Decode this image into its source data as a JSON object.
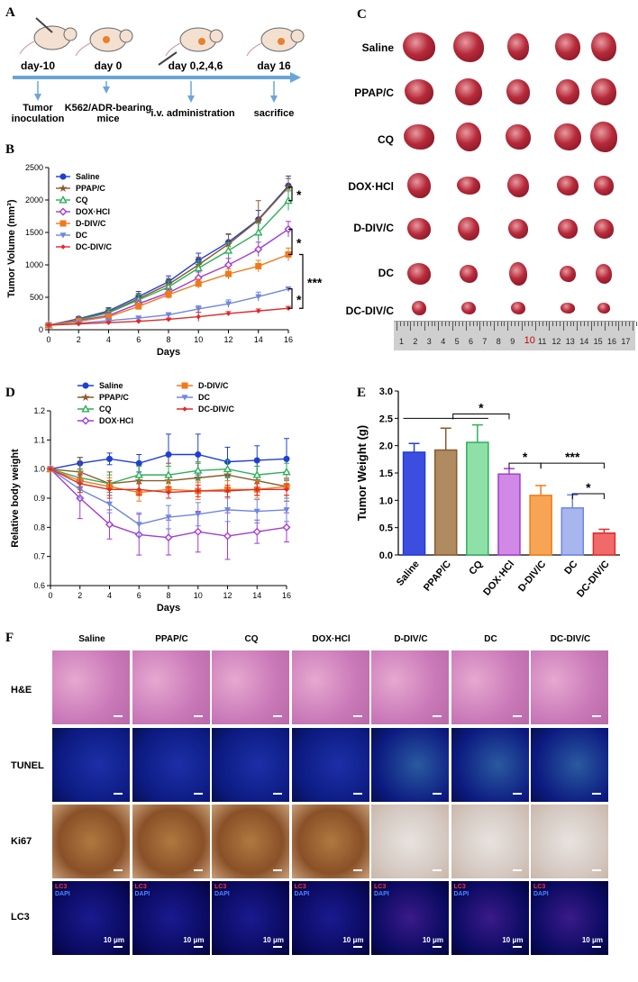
{
  "panels": {
    "a": "A",
    "b": "B",
    "c": "C",
    "d": "D",
    "e": "E",
    "f": "F"
  },
  "timeline": {
    "days": [
      "day-10",
      "day 0",
      "day 0,2,4,6",
      "day 16"
    ],
    "events": [
      "Tumor inoculation",
      "K562/ADR-bearing mice",
      "i.v. administration",
      "sacrifice"
    ]
  },
  "colors": {
    "Saline": "#1f3fd1",
    "PPAP/C": "#8b5a2b",
    "CQ": "#2fae5a",
    "DOX·HCl": "#a33bd1",
    "D-DIV/C": "#f07a1a",
    "DC": "#6f86e0",
    "DC-DIV/C": "#e02a2a"
  },
  "chart_data": [
    {
      "type": "line",
      "title": "",
      "xlabel": "Days",
      "ylabel": "Tumor Volume (mm³)",
      "x": [
        0,
        2,
        4,
        6,
        8,
        10,
        12,
        14,
        16
      ],
      "xlim": [
        0,
        16
      ],
      "ylim": [
        0,
        2500
      ],
      "yticks": [
        0,
        500,
        1000,
        1500,
        2000,
        2500
      ],
      "legend": "top-left",
      "significance": [
        "*",
        "*",
        "***",
        "*"
      ],
      "series": [
        {
          "name": "Saline",
          "values": [
            70,
            170,
            290,
            510,
            740,
            1070,
            1350,
            1700,
            2220
          ],
          "err": [
            20,
            30,
            50,
            80,
            90,
            110,
            120,
            140,
            150
          ]
        },
        {
          "name": "PPAP/C",
          "values": [
            70,
            160,
            270,
            480,
            700,
            1000,
            1320,
            1690,
            2200
          ],
          "err": [
            20,
            30,
            50,
            80,
            90,
            120,
            160,
            300,
            130
          ]
        },
        {
          "name": "CQ",
          "values": [
            70,
            150,
            260,
            460,
            660,
            950,
            1220,
            1500,
            1990
          ],
          "err": [
            20,
            30,
            50,
            80,
            90,
            110,
            120,
            140,
            150
          ]
        },
        {
          "name": "DOX·HCl",
          "values": [
            70,
            140,
            220,
            400,
            570,
            800,
            1000,
            1240,
            1550
          ],
          "err": [
            20,
            30,
            40,
            60,
            70,
            90,
            100,
            110,
            120
          ]
        },
        {
          "name": "D-DIV/C",
          "values": [
            70,
            130,
            200,
            360,
            540,
            710,
            860,
            980,
            1160
          ],
          "err": [
            20,
            30,
            40,
            50,
            60,
            70,
            80,
            90,
            100
          ]
        },
        {
          "name": "DC",
          "values": [
            70,
            100,
            140,
            180,
            230,
            320,
            400,
            510,
            630
          ],
          "err": [
            10,
            20,
            20,
            30,
            30,
            50,
            60,
            70,
            30
          ]
        },
        {
          "name": "DC-DIV/C",
          "values": [
            70,
            90,
            110,
            130,
            160,
            200,
            250,
            290,
            330
          ],
          "err": [
            10,
            15,
            15,
            20,
            20,
            70,
            30,
            30,
            30
          ]
        }
      ]
    },
    {
      "type": "line",
      "title": "",
      "xlabel": "Days",
      "ylabel": "Relative body weight",
      "x": [
        0,
        2,
        4,
        6,
        8,
        10,
        12,
        14,
        16
      ],
      "xlim": [
        0,
        16
      ],
      "ylim": [
        0.6,
        1.2
      ],
      "yticks": [
        0.6,
        0.7,
        0.8,
        0.9,
        1.0,
        1.1,
        1.2
      ],
      "legend": "top",
      "series": [
        {
          "name": "Saline",
          "values": [
            1.0,
            1.02,
            1.035,
            1.02,
            1.05,
            1.05,
            1.025,
            1.03,
            1.035
          ],
          "err": [
            0,
            0.02,
            0.02,
            0.03,
            0.07,
            0.07,
            0.05,
            0.05,
            0.07
          ]
        },
        {
          "name": "PPAP/C",
          "values": [
            1.0,
            0.99,
            0.95,
            0.96,
            0.96,
            0.97,
            0.98,
            0.96,
            0.94
          ],
          "err": [
            0,
            0.05,
            0.04,
            0.05,
            0.06,
            0.05,
            0.05,
            0.05,
            0.05
          ]
        },
        {
          "name": "CQ",
          "values": [
            1.0,
            0.97,
            0.95,
            0.98,
            0.98,
            0.995,
            1.0,
            0.98,
            0.99
          ],
          "err": [
            0,
            0.03,
            0.03,
            0.03,
            0.03,
            0.03,
            0.03,
            0.03,
            0.03
          ]
        },
        {
          "name": "DOX·HCl",
          "values": [
            1.0,
            0.9,
            0.81,
            0.775,
            0.765,
            0.785,
            0.77,
            0.785,
            0.8
          ],
          "err": [
            0,
            0.07,
            0.05,
            0.07,
            0.06,
            0.07,
            0.08,
            0.04,
            0.05
          ]
        },
        {
          "name": "D-DIV/C",
          "values": [
            1.0,
            0.96,
            0.94,
            0.92,
            0.93,
            0.925,
            0.93,
            0.93,
            0.94
          ],
          "err": [
            0,
            0.03,
            0.03,
            0.03,
            0.03,
            0.03,
            0.03,
            0.03,
            0.03
          ]
        },
        {
          "name": "DC",
          "values": [
            1.0,
            0.93,
            0.88,
            0.81,
            0.835,
            0.845,
            0.86,
            0.855,
            0.86
          ],
          "err": [
            0,
            0.03,
            0.03,
            0.04,
            0.04,
            0.04,
            0.04,
            0.04,
            0.04
          ]
        },
        {
          "name": "DC-DIV/C",
          "values": [
            1.0,
            0.95,
            0.93,
            0.93,
            0.92,
            0.925,
            0.925,
            0.93,
            0.93
          ],
          "err": [
            0,
            0.03,
            0.03,
            0.02,
            0.02,
            0.02,
            0.02,
            0.02,
            0.02
          ]
        }
      ]
    },
    {
      "type": "bar",
      "title": "",
      "xlabel": "",
      "ylabel": "Tumor Weight (g)",
      "categories": [
        "Saline",
        "PPAP/C",
        "CQ",
        "DOX·HCl",
        "D-DIV/C",
        "DC",
        "DC-DIV/C"
      ],
      "values": [
        1.88,
        1.92,
        2.06,
        1.48,
        1.09,
        0.86,
        0.4
      ],
      "err": [
        0.16,
        0.4,
        0.32,
        0.1,
        0.18,
        0.24,
        0.07
      ],
      "ylim": [
        0,
        3.0
      ],
      "yticks": [
        0.0,
        0.5,
        1.0,
        1.5,
        2.0,
        2.5,
        3.0
      ],
      "significance": [
        "*",
        "*",
        "***",
        "*"
      ]
    }
  ],
  "photos": {
    "rows": [
      "Saline",
      "PPAP/C",
      "CQ",
      "DOX·HCl",
      "D-DIV/C",
      "DC",
      "DC-DIV/C"
    ],
    "ruler": [
      "1",
      "2",
      "3",
      "4",
      "5",
      "6",
      "7",
      "8",
      "9",
      "10",
      "11",
      "12",
      "13",
      "14",
      "15",
      "16",
      "17"
    ]
  },
  "histology": {
    "columns": [
      "Saline",
      "PPAP/C",
      "CQ",
      "DOX·HCl",
      "D-DIV/C",
      "DC",
      "DC-DIV/C"
    ],
    "rows": [
      "H&E",
      "TUNEL",
      "Ki67",
      "LC3"
    ],
    "lc3_label": "LC3",
    "dapi_label": "DAPI",
    "scale_label": "10 μm"
  }
}
